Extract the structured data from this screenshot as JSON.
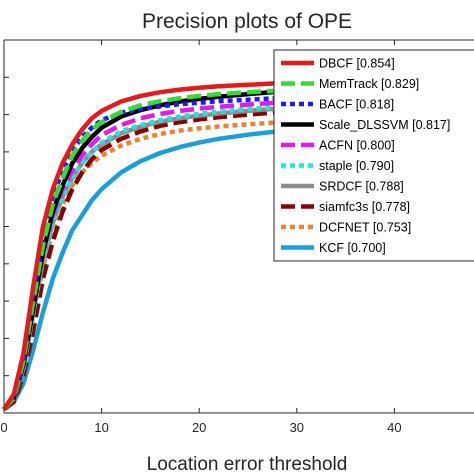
{
  "chart_data": {
    "type": "line",
    "title": "Precision plots of OPE",
    "xlabel": "Location error threshold",
    "ylabel": "",
    "xlim": [
      0,
      50
    ],
    "ylim": [
      0,
      1
    ],
    "x_ticks": [
      0,
      10,
      20,
      30,
      40
    ],
    "x_tick_labels": [
      "0",
      "10",
      "20",
      "30",
      "40"
    ],
    "grid": false,
    "legend_position": "top-right",
    "x": [
      0,
      1,
      2,
      3,
      4,
      5,
      6,
      7,
      8,
      9,
      10,
      12,
      14,
      16,
      18,
      20,
      22,
      25,
      28,
      30,
      35,
      40,
      45,
      50
    ],
    "series": [
      {
        "name": "DBCF [0.854]",
        "color": "#e41a1c",
        "style": "solid",
        "values": [
          0.01,
          0.05,
          0.16,
          0.34,
          0.5,
          0.6,
          0.67,
          0.72,
          0.76,
          0.79,
          0.81,
          0.835,
          0.85,
          0.86,
          0.867,
          0.872,
          0.876,
          0.88,
          0.884,
          0.886,
          0.89,
          0.893,
          0.895,
          0.897
        ]
      },
      {
        "name": "MemTrack [0.829]",
        "color": "#33dd33",
        "style": "dashed",
        "values": [
          0.01,
          0.04,
          0.14,
          0.3,
          0.45,
          0.56,
          0.63,
          0.69,
          0.73,
          0.76,
          0.78,
          0.807,
          0.825,
          0.836,
          0.844,
          0.85,
          0.855,
          0.86,
          0.864,
          0.866,
          0.871,
          0.874,
          0.877,
          0.88
        ]
      },
      {
        "name": "BACF [0.818]",
        "color": "#1a1aff",
        "style": "dotted",
        "values": [
          0.01,
          0.04,
          0.14,
          0.31,
          0.47,
          0.58,
          0.65,
          0.7,
          0.74,
          0.765,
          0.785,
          0.805,
          0.815,
          0.822,
          0.828,
          0.832,
          0.836,
          0.84,
          0.844,
          0.846,
          0.85,
          0.853,
          0.856,
          0.858
        ]
      },
      {
        "name": "Scale_DLSSVM [0.817]",
        "color": "#000000",
        "style": "solid",
        "values": [
          0.01,
          0.04,
          0.13,
          0.28,
          0.43,
          0.54,
          0.61,
          0.67,
          0.71,
          0.74,
          0.765,
          0.795,
          0.812,
          0.825,
          0.835,
          0.842,
          0.848,
          0.855,
          0.861,
          0.864,
          0.87,
          0.874,
          0.877,
          0.88
        ]
      },
      {
        "name": "ACFN [0.800]",
        "color": "#e619e6",
        "style": "dashed",
        "values": [
          0.01,
          0.04,
          0.13,
          0.29,
          0.43,
          0.53,
          0.6,
          0.65,
          0.69,
          0.72,
          0.745,
          0.772,
          0.79,
          0.802,
          0.81,
          0.816,
          0.821,
          0.827,
          0.832,
          0.835,
          0.84,
          0.844,
          0.847,
          0.85
        ]
      },
      {
        "name": "staple [0.790]",
        "color": "#1ae6e6",
        "style": "dotted",
        "values": [
          0.01,
          0.04,
          0.12,
          0.27,
          0.41,
          0.51,
          0.58,
          0.63,
          0.67,
          0.7,
          0.725,
          0.755,
          0.772,
          0.785,
          0.795,
          0.802,
          0.808,
          0.815,
          0.82,
          0.823,
          0.829,
          0.833,
          0.836,
          0.839
        ]
      },
      {
        "name": "SRDCF [0.788]",
        "color": "#8c8c8c",
        "style": "solid",
        "values": [
          0.01,
          0.04,
          0.12,
          0.27,
          0.41,
          0.51,
          0.58,
          0.63,
          0.67,
          0.7,
          0.72,
          0.75,
          0.768,
          0.781,
          0.79,
          0.797,
          0.803,
          0.81,
          0.816,
          0.819,
          0.825,
          0.829,
          0.832,
          0.835
        ]
      },
      {
        "name": "siamfc3s [0.778]",
        "color": "#8b0000",
        "style": "dashed",
        "values": [
          0.01,
          0.03,
          0.1,
          0.22,
          0.36,
          0.46,
          0.54,
          0.6,
          0.645,
          0.68,
          0.705,
          0.735,
          0.755,
          0.77,
          0.78,
          0.787,
          0.793,
          0.8,
          0.806,
          0.809,
          0.815,
          0.82,
          0.823,
          0.826
        ]
      },
      {
        "name": "DCFNET [0.753]",
        "color": "#f08030",
        "style": "dotted",
        "values": [
          0.01,
          0.04,
          0.12,
          0.26,
          0.39,
          0.49,
          0.56,
          0.61,
          0.645,
          0.67,
          0.69,
          0.717,
          0.735,
          0.748,
          0.757,
          0.763,
          0.768,
          0.774,
          0.779,
          0.782,
          0.788,
          0.792,
          0.795,
          0.798
        ]
      },
      {
        "name": "KCF [0.700]",
        "color": "#1a9fd9",
        "style": "solid",
        "values": [
          0.01,
          0.03,
          0.08,
          0.17,
          0.27,
          0.36,
          0.43,
          0.49,
          0.53,
          0.57,
          0.6,
          0.645,
          0.675,
          0.697,
          0.713,
          0.725,
          0.735,
          0.746,
          0.755,
          0.76,
          0.769,
          0.775,
          0.779,
          0.782
        ]
      }
    ]
  }
}
